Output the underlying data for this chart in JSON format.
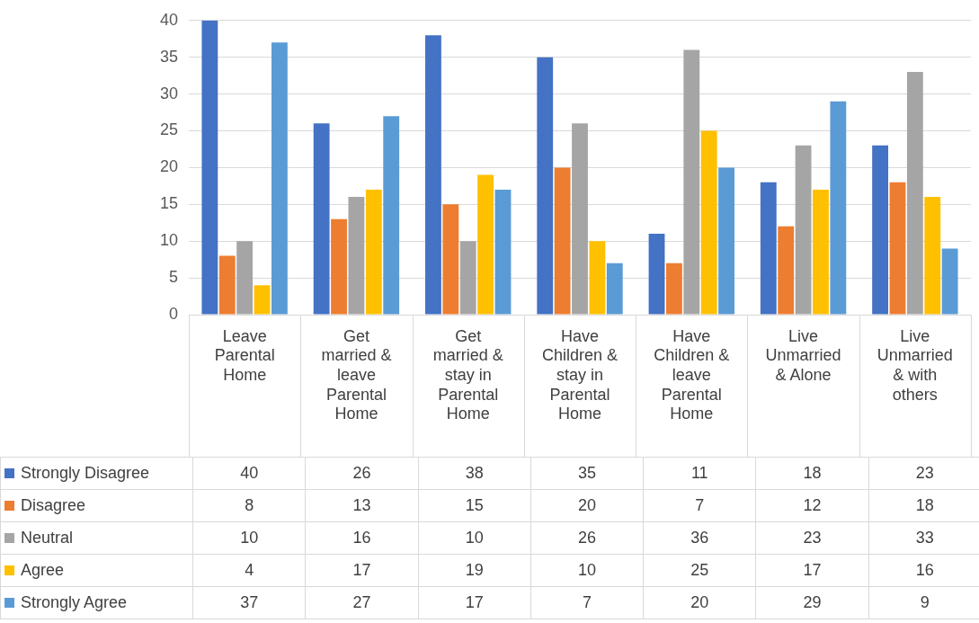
{
  "chart_data": {
    "type": "bar",
    "categories": [
      "Leave Parental Home",
      "Get married & leave Parental Home",
      "Get married & stay in Parental Home",
      "Have Children & stay in Parental Home",
      "Have Children & leave Parental Home",
      "Live Unmarried & Alone",
      "Live Unmarried & with others"
    ],
    "series": [
      {
        "name": "Strongly Disagree",
        "color": "#4472c4",
        "values": [
          40,
          26,
          38,
          35,
          11,
          18,
          23
        ]
      },
      {
        "name": "Disagree",
        "color": "#ed7d31",
        "values": [
          8,
          13,
          15,
          20,
          7,
          12,
          18
        ]
      },
      {
        "name": "Neutral",
        "color": "#a5a5a5",
        "values": [
          10,
          16,
          10,
          26,
          36,
          23,
          33
        ]
      },
      {
        "name": "Agree",
        "color": "#ffc000",
        "values": [
          4,
          17,
          19,
          10,
          25,
          17,
          16
        ]
      },
      {
        "name": "Strongly Agree",
        "color": "#5b9bd5",
        "values": [
          37,
          27,
          17,
          7,
          20,
          29,
          9
        ]
      }
    ],
    "ylim": [
      0,
      40
    ],
    "yticks": [
      0,
      5,
      10,
      15,
      20,
      25,
      30,
      35,
      40
    ],
    "grid": "y",
    "legend": "bottom",
    "data_labels": true
  }
}
